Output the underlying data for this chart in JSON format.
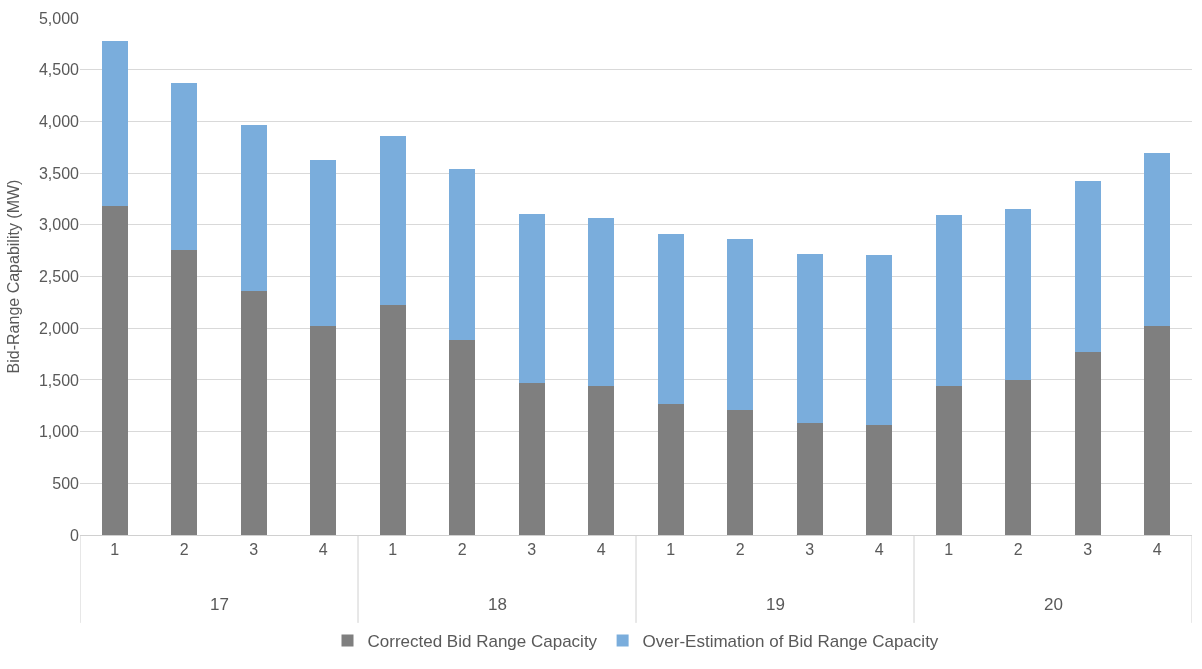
{
  "chart_data": {
    "type": "bar",
    "stacked": true,
    "ylabel": "Bid-Range Capability (MW)",
    "categories": [
      "1",
      "2",
      "3",
      "4",
      "1",
      "2",
      "3",
      "4",
      "1",
      "2",
      "3",
      "4",
      "1",
      "2",
      "3",
      "4"
    ],
    "annotations": [
      "17",
      "18",
      "19",
      "20"
    ],
    "series": [
      {
        "name": "Corrected Bid Range Capacity",
        "color": "#7f7f7f",
        "values": [
          3180,
          2760,
          2360,
          2020,
          2220,
          1890,
          1470,
          1440,
          1270,
          1210,
          1080,
          1060,
          1440,
          1500,
          1770,
          2020
        ]
      },
      {
        "name": "Over-Estimation of Bid Range Capacity",
        "color": "#7aaddc",
        "values": [
          1600,
          1610,
          1610,
          1610,
          1640,
          1650,
          1630,
          1630,
          1640,
          1650,
          1640,
          1650,
          1650,
          1650,
          1650,
          1670
        ]
      }
    ],
    "ylim": [
      0,
      5000
    ],
    "yticks": [
      {
        "value": 0,
        "label": "0"
      },
      {
        "value": 500,
        "label": "500"
      },
      {
        "value": 1000,
        "label": "1,000"
      },
      {
        "value": 1500,
        "label": "1,500"
      },
      {
        "value": 2000,
        "label": "2,000"
      },
      {
        "value": 2500,
        "label": "2,500"
      },
      {
        "value": 3000,
        "label": "3,000"
      },
      {
        "value": 3500,
        "label": "3,500"
      },
      {
        "value": 4000,
        "label": "4,000"
      },
      {
        "value": 4500,
        "label": "4,500"
      },
      {
        "value": 5000,
        "label": "5,000"
      }
    ],
    "grid": "y",
    "legend": "bottom"
  }
}
